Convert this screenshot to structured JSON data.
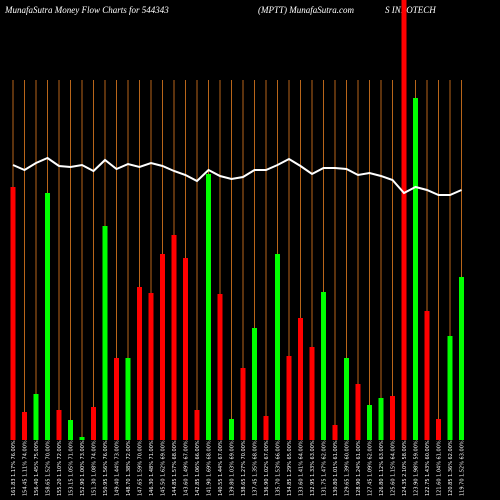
{
  "chart_data": {
    "type": "bar",
    "title": "MunafaSutra  Money Flow  Charts for 544343",
    "subtitle": "(MPTT) MunafaSutra.com",
    "company": "S INFOTECH",
    "categories": [
      "161.83 1.17% 76.00%",
      "154.45 1.11% 74.00%",
      "156.40 1.45% 75.00%",
      "158.65 1.52% 70.00%",
      "155.20 1.10% 72.00%",
      "153.15 1.05% 71.00%",
      "152.90 1.00% 73.00%",
      "151.30 1.08% 74.00%",
      "150.95 1.56% 76.00%",
      "149.40 1.44% 73.00%",
      "148.70 1.38% 72.00%",
      "147.65 1.59% 70.00%",
      "146.30 1.48% 71.00%",
      "145.50 1.62% 69.00%",
      "144.85 1.57% 68.00%",
      "143.60 1.49% 67.00%",
      "142.85 1.06% 66.00%",
      "141.90 1.69% 68.00%",
      "140.55 1.44% 67.00%",
      "139.80 1.03% 69.00%",
      "138.65 1.27% 70.00%",
      "137.45 1.35% 68.00%",
      "136.90 1.02% 67.00%",
      "135.70 1.53% 66.00%",
      "134.85 1.29% 65.00%",
      "133.60 1.41% 64.00%",
      "132.95 1.33% 63.00%",
      "131.75 1.47% 62.00%",
      "130.80 1.01% 61.00%",
      "129.65 1.39% 60.00%",
      "128.90 1.24% 61.00%",
      "127.45 1.09% 62.00%",
      "126.80 1.12% 63.00%",
      "125.60 1.15% 64.00%",
      "124.35 2.10% 58.00%",
      "123.90 1.98% 59.00%",
      "122.75 1.43% 60.00%",
      "121.60 1.04% 61.00%",
      "120.85 1.36% 62.00%",
      "119.70 1.52% 63.00%"
    ],
    "values": [
      253,
      28,
      46,
      247,
      30,
      20,
      3,
      33,
      214,
      82,
      82,
      153,
      147,
      186,
      205,
      182,
      30,
      266,
      146,
      21,
      72,
      112,
      24,
      186,
      84,
      122,
      93,
      148,
      15,
      82,
      56,
      35,
      42,
      44,
      440,
      342,
      129,
      21,
      104,
      163
    ],
    "colors": [
      "#ff0000",
      "#ff0000",
      "#00ff00",
      "#00ff00",
      "#ff0000",
      "#00ff00",
      "#00ff00",
      "#ff0000",
      "#00ff00",
      "#ff0000",
      "#00ff00",
      "#ff0000",
      "#ff0000",
      "#ff0000",
      "#ff0000",
      "#ff0000",
      "#ff0000",
      "#00ff00",
      "#ff0000",
      "#00ff00",
      "#ff0000",
      "#00ff00",
      "#ff0000",
      "#00ff00",
      "#ff0000",
      "#ff0000",
      "#ff0000",
      "#00ff00",
      "#ff0000",
      "#00ff00",
      "#ff0000",
      "#00ff00",
      "#00ff00",
      "#ff0000",
      "#ff0000",
      "#00ff00",
      "#ff0000",
      "#ff0000",
      "#00ff00",
      "#00ff00"
    ],
    "line": {
      "color": "#ffffff",
      "values": [
        275,
        270,
        277,
        282,
        274,
        273,
        275,
        269,
        280,
        271,
        276,
        273,
        277,
        274,
        269,
        265,
        259,
        270,
        264,
        261,
        263,
        270,
        270,
        275,
        281,
        274,
        266,
        272,
        272,
        271,
        265,
        267,
        264,
        260,
        247,
        253,
        250,
        245,
        245,
        250
      ]
    },
    "grid_color": "#b8651a",
    "ylim": [
      0,
      440
    ]
  }
}
